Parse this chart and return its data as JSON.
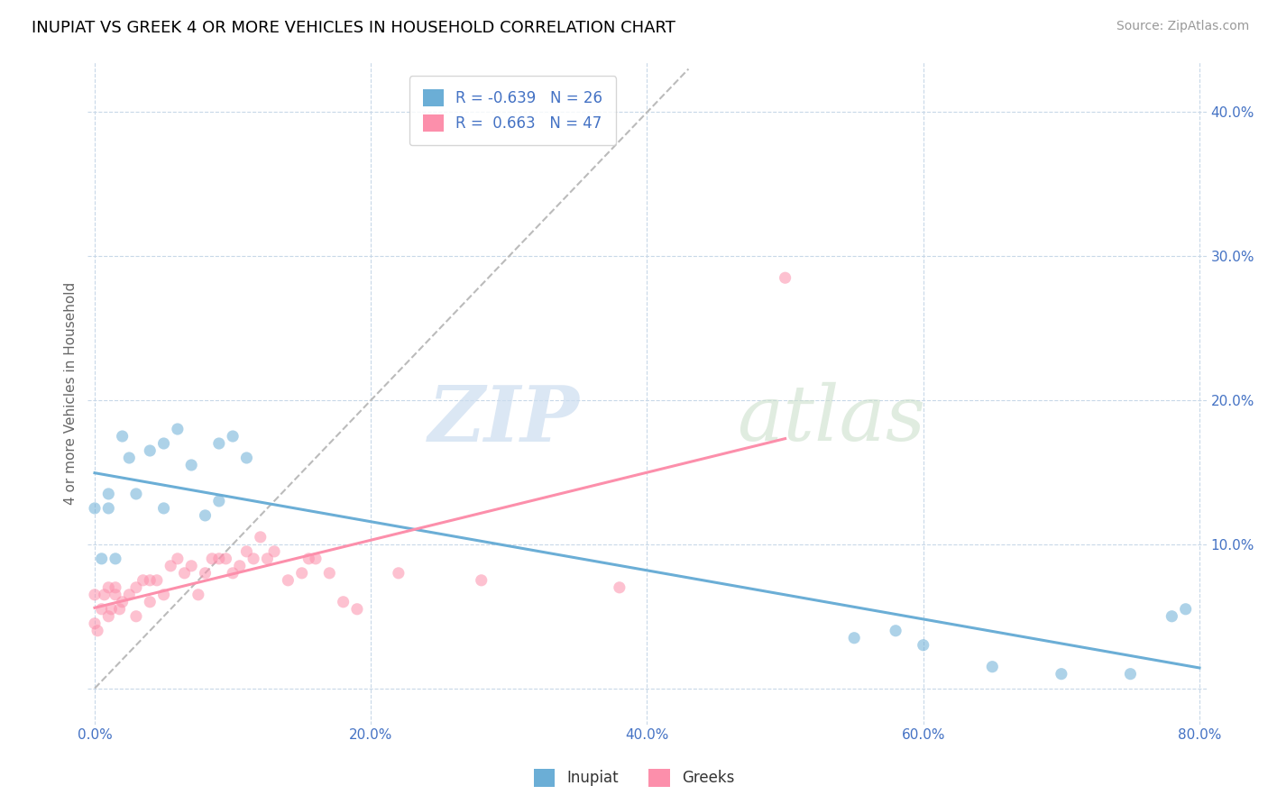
{
  "title": "INUPIAT VS GREEK 4 OR MORE VEHICLES IN HOUSEHOLD CORRELATION CHART",
  "source": "Source: ZipAtlas.com",
  "ylabel": "4 or more Vehicles in Household",
  "xlim": [
    -0.005,
    0.805
  ],
  "ylim": [
    -0.025,
    0.435
  ],
  "x_ticks": [
    0.0,
    0.2,
    0.4,
    0.6,
    0.8
  ],
  "x_tick_labels": [
    "0.0%",
    "20.0%",
    "40.0%",
    "60.0%",
    "80.0%"
  ],
  "y_ticks": [
    0.0,
    0.1,
    0.2,
    0.3,
    0.4
  ],
  "y_tick_labels": [
    "",
    "10.0%",
    "20.0%",
    "30.0%",
    "40.0%"
  ],
  "inupiat_color": "#6baed6",
  "greek_color": "#fc8fab",
  "diagonal_color": "#bbbbbb",
  "legend_r_inupiat": "-0.639",
  "legend_n_inupiat": "26",
  "legend_r_greek": "0.663",
  "legend_n_greek": "47",
  "inupiat_x": [
    0.0,
    0.005,
    0.01,
    0.01,
    0.015,
    0.02,
    0.025,
    0.03,
    0.04,
    0.05,
    0.05,
    0.06,
    0.07,
    0.08,
    0.09,
    0.09,
    0.1,
    0.11,
    0.55,
    0.58,
    0.6,
    0.65,
    0.7,
    0.75,
    0.78,
    0.79
  ],
  "inupiat_y": [
    0.125,
    0.09,
    0.125,
    0.135,
    0.09,
    0.175,
    0.16,
    0.135,
    0.165,
    0.125,
    0.17,
    0.18,
    0.155,
    0.12,
    0.17,
    0.13,
    0.175,
    0.16,
    0.035,
    0.04,
    0.03,
    0.015,
    0.01,
    0.01,
    0.05,
    0.055
  ],
  "greek_x": [
    0.0,
    0.0,
    0.002,
    0.005,
    0.007,
    0.01,
    0.01,
    0.012,
    0.015,
    0.015,
    0.018,
    0.02,
    0.025,
    0.03,
    0.03,
    0.035,
    0.04,
    0.04,
    0.045,
    0.05,
    0.055,
    0.06,
    0.065,
    0.07,
    0.075,
    0.08,
    0.085,
    0.09,
    0.095,
    0.1,
    0.105,
    0.11,
    0.115,
    0.12,
    0.125,
    0.13,
    0.14,
    0.15,
    0.155,
    0.16,
    0.17,
    0.18,
    0.19,
    0.22,
    0.28,
    0.38,
    0.5
  ],
  "greek_y": [
    0.045,
    0.065,
    0.04,
    0.055,
    0.065,
    0.05,
    0.07,
    0.055,
    0.065,
    0.07,
    0.055,
    0.06,
    0.065,
    0.05,
    0.07,
    0.075,
    0.075,
    0.06,
    0.075,
    0.065,
    0.085,
    0.09,
    0.08,
    0.085,
    0.065,
    0.08,
    0.09,
    0.09,
    0.09,
    0.08,
    0.085,
    0.095,
    0.09,
    0.105,
    0.09,
    0.095,
    0.075,
    0.08,
    0.09,
    0.09,
    0.08,
    0.06,
    0.055,
    0.08,
    0.075,
    0.07,
    0.285
  ],
  "dot_size": 90,
  "dot_alpha": 0.55,
  "title_fontsize": 13,
  "axis_label_fontsize": 11,
  "tick_fontsize": 11,
  "legend_fontsize": 12,
  "source_fontsize": 10
}
